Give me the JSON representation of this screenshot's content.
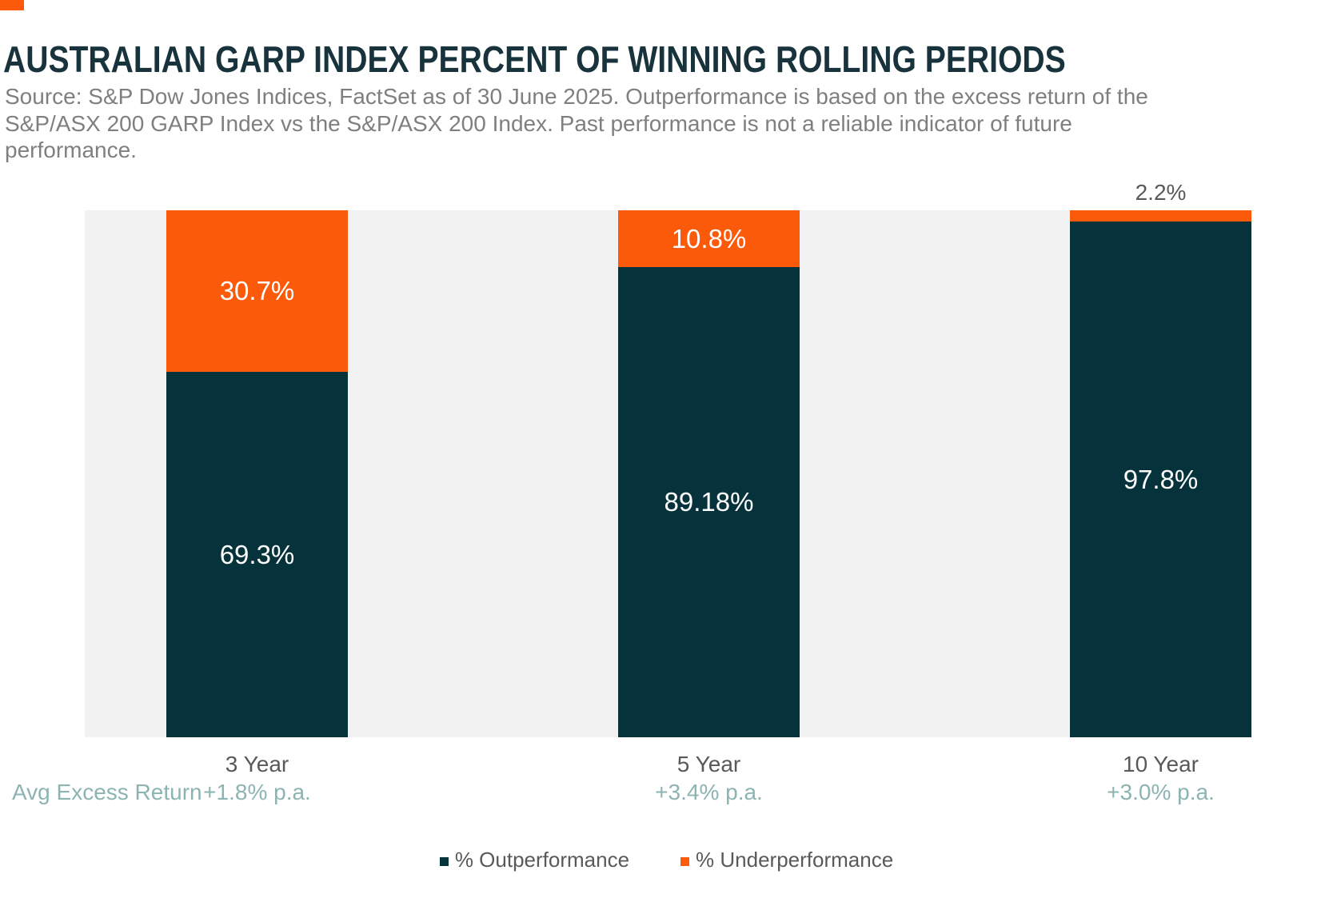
{
  "page": {
    "title": "AUSTRALIAN GARP INDEX PERCENT OF WINNING ROLLING PERIODS",
    "source": "Source: S&P Dow Jones Indices, FactSet as of 30 June 2025. Outperformance is based on the excess return of the S&P/ASX 200 GARP Index vs the S&P/ASX 200 Index. Past performance is not a reliable indicator of future performance.",
    "accent_color": "#FB5A0A",
    "dark_color": "#06323B",
    "plot_bg_color": "#F2F2F2",
    "title_color": "#19333D",
    "source_color": "#7F7F7F",
    "axis_label_color": "#595959",
    "avg_row_color": "#8CB4B2"
  },
  "chart_data": {
    "type": "bar",
    "stacked": true,
    "orientation": "vertical",
    "categories": [
      "3 Year",
      "5 Year",
      "10 Year"
    ],
    "series": [
      {
        "name": "% Outperformance",
        "color": "#06323B",
        "values": [
          69.3,
          89.18,
          97.8
        ],
        "labels": [
          "69.3%",
          "89.18%",
          "97.8%"
        ]
      },
      {
        "name": "% Underperformance",
        "color": "#FB5A0A",
        "values": [
          30.7,
          10.8,
          2.2
        ],
        "labels": [
          "30.7%",
          "10.8%",
          "2.2%"
        ]
      }
    ],
    "ylim": [
      0,
      100
    ],
    "grid": false,
    "axes_visible": false,
    "legend_position": "bottom",
    "outside_label_threshold": 5
  },
  "avg_row": {
    "label": "Avg Excess Return",
    "values": [
      "+1.8% p.a.",
      "+3.4% p.a.",
      "+3.0% p.a."
    ]
  },
  "legend": {
    "items": [
      {
        "label": "% Outperformance",
        "color": "#06323B"
      },
      {
        "label": "% Underperformance",
        "color": "#FB5A0A"
      }
    ]
  }
}
